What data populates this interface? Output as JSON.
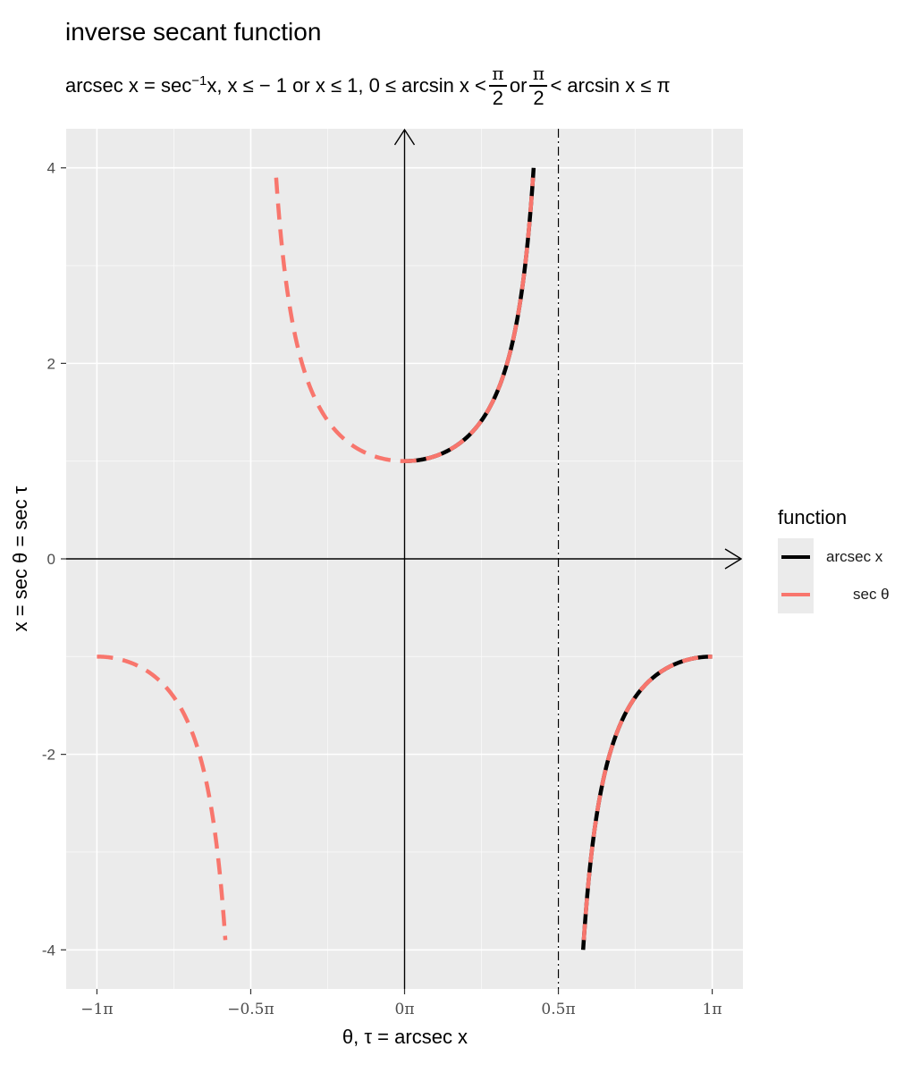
{
  "title": "inverse secant function",
  "subtitle": {
    "part1": "arcsec x = sec",
    "sup": "−1",
    "part2": "x, x ≤ − 1 or x ≤ 1, 0 ≤ arcsin x <",
    "frac_num": "π",
    "frac_den": "2",
    "or_text": "or",
    "part3": "< arcsin x ≤ π"
  },
  "colors": {
    "panel": "#ebebeb",
    "grid": "#ffffff",
    "arcsec": "#000000",
    "sec": "#f8766d"
  },
  "chart_data": {
    "type": "line",
    "xlabel": "θ, τ = arcsec x",
    "ylabel": "x = sec θ = sec τ",
    "x_units": "π",
    "xlim": [
      -1.1,
      1.1
    ],
    "ylim": [
      -4.4,
      4.4
    ],
    "x_ticks": [
      {
        "value": -1,
        "label": "−1π"
      },
      {
        "value": -0.5,
        "label": "−0.5π"
      },
      {
        "value": 0,
        "label": "0π"
      },
      {
        "value": 0.5,
        "label": "0.5π"
      },
      {
        "value": 1,
        "label": "1π"
      }
    ],
    "y_ticks": [
      {
        "value": -4,
        "label": "-4"
      },
      {
        "value": -2,
        "label": "-2"
      },
      {
        "value": 0,
        "label": "0"
      },
      {
        "value": 2,
        "label": "2"
      },
      {
        "value": 4,
        "label": "4"
      }
    ],
    "vline_x": 0.5,
    "legend": {
      "title": "function",
      "entries": [
        {
          "name": "arcsec x",
          "color": "#000000",
          "dash": "solid"
        },
        {
          "name": "sec θ",
          "color": "#f8766d",
          "dash": "dashed"
        }
      ]
    },
    "series": [
      {
        "name": "arcsec x",
        "segments": [
          {
            "y_range": [
              1,
              4
            ],
            "note": "x = sec(πt), t from 0 to arcsec 4"
          },
          {
            "y_range": [
              -4,
              -1
            ],
            "note": "x = sec(πt), t from arcsec(-4) to 1"
          }
        ]
      },
      {
        "name": "sec θ",
        "segments": [
          {
            "x_range": [
              -1,
              -0.58
            ],
            "y_range": [
              -1,
              -3.9
            ]
          },
          {
            "x_range": [
              -0.42,
              0.42
            ],
            "y_range": [
              1,
              3.9
            ]
          },
          {
            "x_range": [
              0.58,
              1
            ],
            "y_range": [
              -3.9,
              -1
            ]
          }
        ]
      }
    ]
  }
}
